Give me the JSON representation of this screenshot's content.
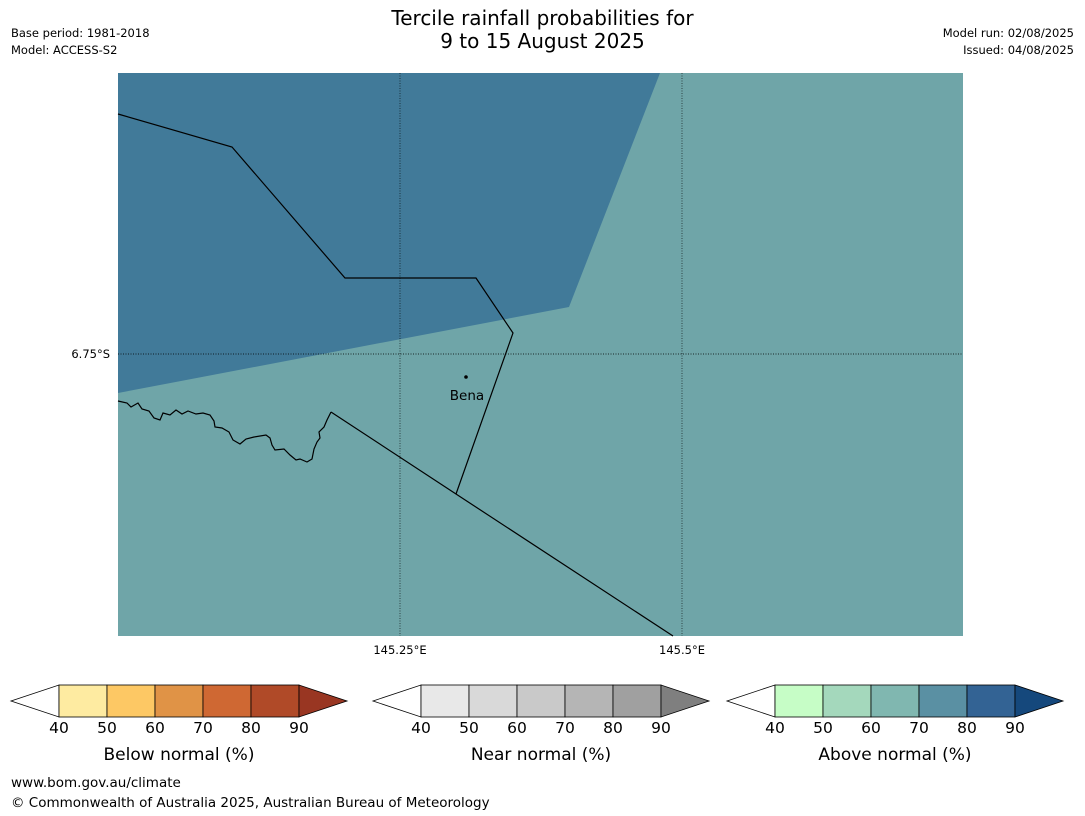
{
  "title_line1": "Tercile rainfall probabilities for",
  "title_line2": "9 to 15 August 2025",
  "meta_left": {
    "base_period": "Base period: 1981-2018",
    "model": "Model: ACCESS-S2"
  },
  "meta_right": {
    "model_run": "Model run: 02/08/2025",
    "issued": "Issued: 04/08/2025"
  },
  "map": {
    "lat_label": "6.75°S",
    "lon_labels": [
      "145.25°E",
      "145.5°E"
    ],
    "place_label": "Bena",
    "colors": {
      "near_normal_region": "#6fa5a8",
      "above_normal_region": "#417a99"
    }
  },
  "colorbars": [
    {
      "label": "Below normal (%)",
      "ticks": [
        "40",
        "50",
        "60",
        "70",
        "80",
        "90"
      ],
      "colors": [
        "#ffffff",
        "#feeba1",
        "#fdc864",
        "#e09346",
        "#cf6833",
        "#b04a28",
        "#993622"
      ]
    },
    {
      "label": "Near normal (%)",
      "ticks": [
        "40",
        "50",
        "60",
        "70",
        "80",
        "90"
      ],
      "colors": [
        "#ffffff",
        "#e8e8e8",
        "#d9d9d9",
        "#c9c9c9",
        "#b5b5b5",
        "#a0a0a0",
        "#7f7f7f"
      ]
    },
    {
      "label": "Above normal (%)",
      "ticks": [
        "40",
        "50",
        "60",
        "70",
        "80",
        "90"
      ],
      "colors": [
        "#ffffff",
        "#c6fdc6",
        "#a4d8bc",
        "#80b7b0",
        "#5a90a3",
        "#336394",
        "#15487c"
      ]
    }
  ],
  "footer": {
    "url": "www.bom.gov.au/climate",
    "copyright": "© Commonwealth of Australia 2025, Australian Bureau of Meteorology"
  }
}
